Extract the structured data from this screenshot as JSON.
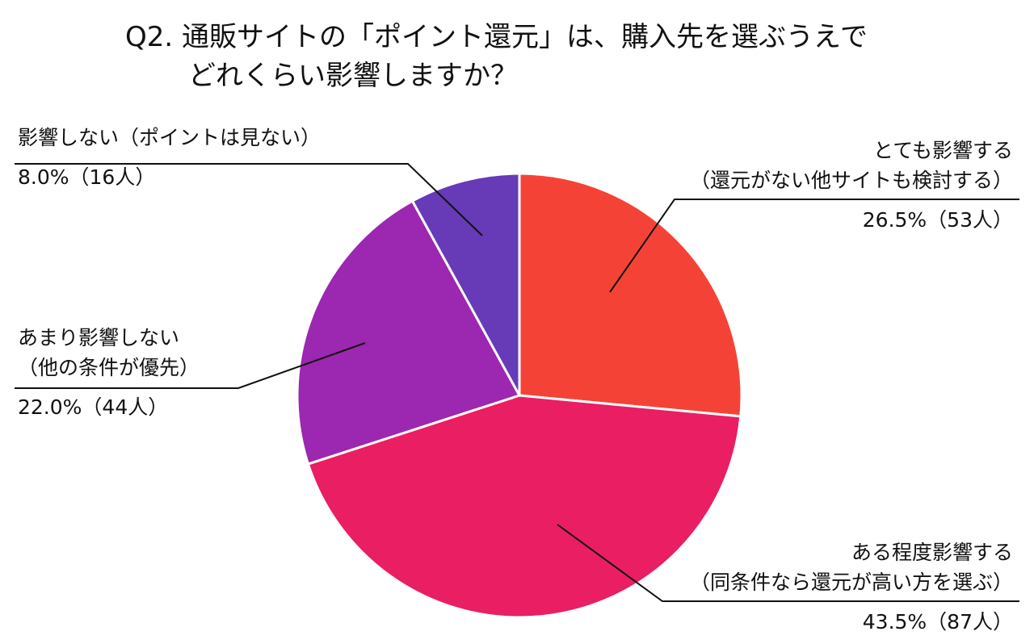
{
  "chart_data": {
    "type": "pie",
    "title_line1": "Q2. 通販サイトの「ポイント還元」は、購入先を選ぶうえで",
    "title_line2": "どれくらい影響しますか？",
    "start": "top",
    "direction": "clockwise",
    "slices": [
      {
        "label_line1": "とても影響する",
        "label_line2": "（還元がない他サイトも検討する）",
        "value": 26.5,
        "value_text": "26.5%（53人）",
        "count": 53,
        "color": "#f44336"
      },
      {
        "label_line1": "ある程度影響する",
        "label_line2": "（同条件なら還元が高い方を選ぶ）",
        "value": 43.5,
        "value_text": "43.5%（87人）",
        "count": 87,
        "color": "#e91e63"
      },
      {
        "label_line1": "あまり影響しない",
        "label_line2": "（他の条件が優先）",
        "value": 22.0,
        "value_text": "22.0%（44人）",
        "count": 44,
        "color": "#9c27b0"
      },
      {
        "label_line1": "影響しない（ポイントは見ない）",
        "label_line2": "",
        "value": 8.0,
        "value_text": "8.0%（16人）",
        "count": 16,
        "color": "#673ab7"
      }
    ]
  }
}
